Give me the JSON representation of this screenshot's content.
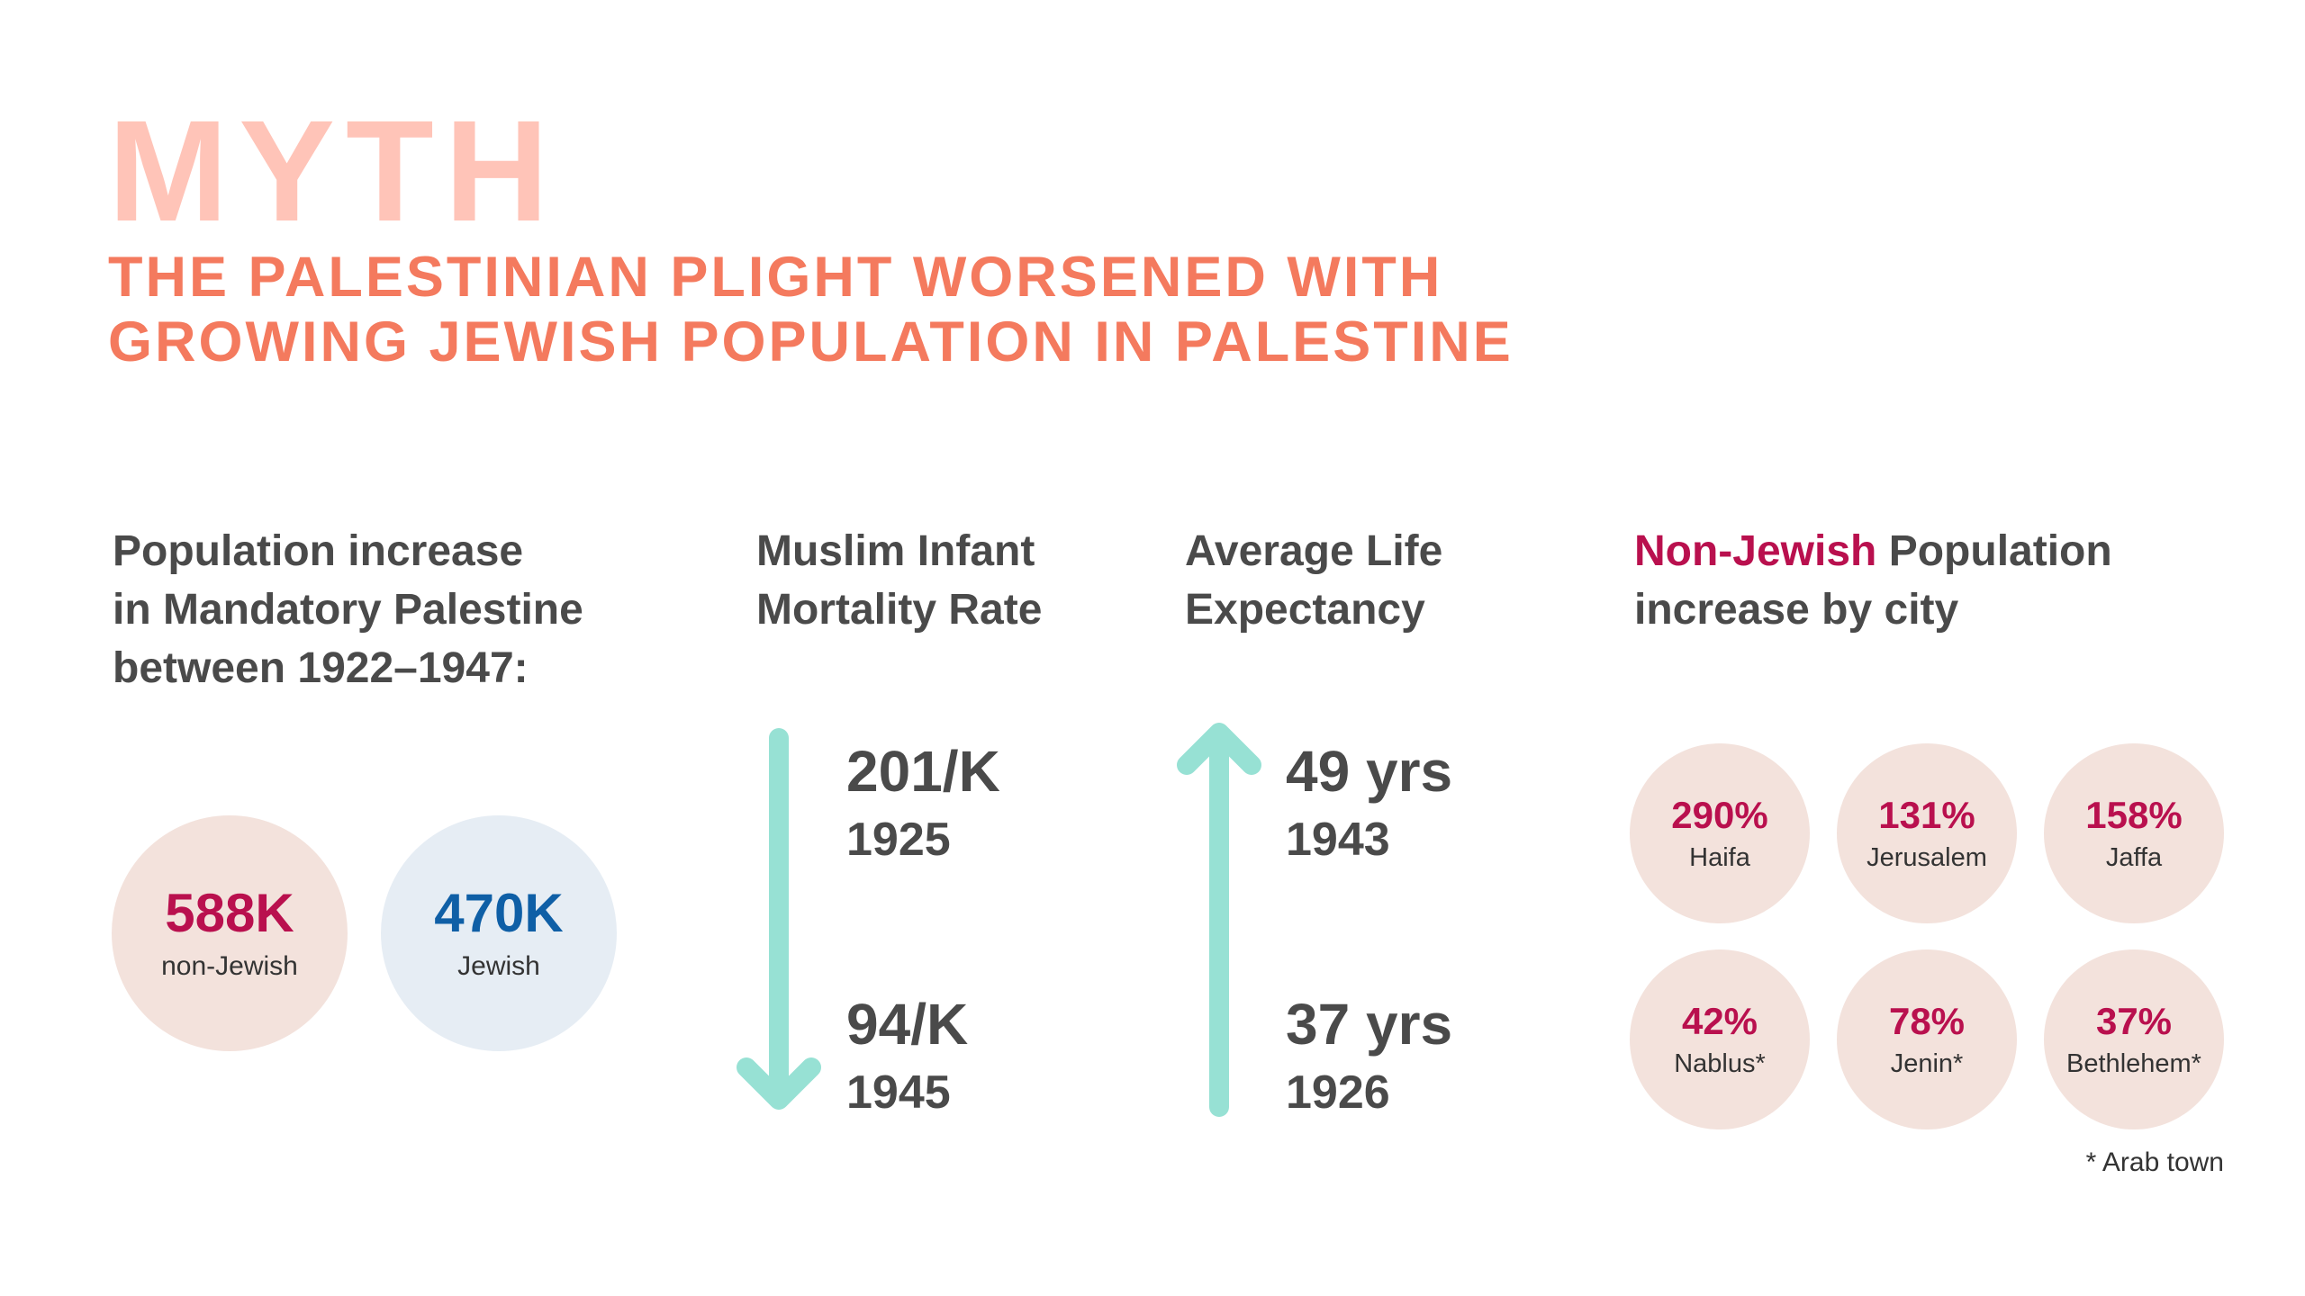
{
  "header": {
    "title": "MYTH",
    "subtitle_lines": [
      "THE PALESTINIAN PLIGHT WORSENED WITH",
      "GROWING JEWISH POPULATION IN PALESTINE"
    ]
  },
  "population": {
    "heading_lines": [
      "Population increase",
      "in Mandatory Palestine",
      "between 1922–1947:"
    ],
    "items": [
      {
        "value": "588K",
        "label": "non-Jewish",
        "value_color": "#b9104e",
        "bg_color": "#f3e2dc"
      },
      {
        "value": "470K",
        "label": "Jewish",
        "value_color": "#0f5fa6",
        "bg_color": "#e6edf4"
      }
    ]
  },
  "infant_mortality": {
    "heading_lines": [
      "Muslim Infant",
      "Mortality Rate"
    ],
    "direction": "down",
    "entries": [
      {
        "value": "201/K",
        "year": "1925"
      },
      {
        "value": "94/K",
        "year": "1945"
      }
    ]
  },
  "life_expectancy": {
    "heading_lines": [
      "Average Life",
      "Expectancy"
    ],
    "direction": "up",
    "entries": [
      {
        "value": "49 yrs",
        "year": "1943"
      },
      {
        "value": "37 yrs",
        "year": "1926"
      }
    ]
  },
  "cities": {
    "heading_accent": "Non-Jewish",
    "heading_rest": " Population",
    "heading_line2": "increase by city",
    "items": [
      {
        "value": "290%",
        "name": "Haifa"
      },
      {
        "value": "131%",
        "name": "Jerusalem"
      },
      {
        "value": "158%",
        "name": "Jaffa"
      },
      {
        "value": "42%",
        "name": "Nablus*"
      },
      {
        "value": "78%",
        "name": "Jenin*"
      },
      {
        "value": "37%",
        "name": "Bethlehem*"
      }
    ],
    "footnote": "* Arab town"
  },
  "colors": {
    "title": "#ffc4b8",
    "subtitle": "#f47a5e",
    "accent": "#b9104e",
    "arrow": "#97e1d4",
    "city_circle": "#f3e2dc",
    "text": "#4a4a4a"
  }
}
